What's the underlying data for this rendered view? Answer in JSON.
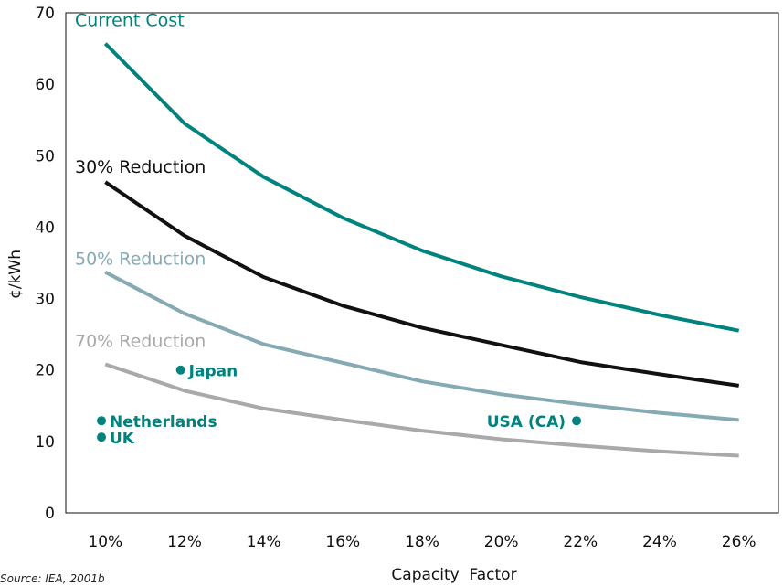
{
  "chart_data": {
    "type": "line",
    "xlabel": "Capacity  Factor",
    "ylabel": "¢/kWh",
    "x": [
      10,
      12,
      14,
      16,
      18,
      20,
      22,
      24,
      26
    ],
    "x_tick_labels": [
      "10%",
      "12%",
      "14%",
      "16%",
      "18%",
      "20%",
      "22%",
      "24%",
      "26%"
    ],
    "y_ticks": [
      0,
      10,
      20,
      30,
      40,
      50,
      60,
      70
    ],
    "xlim": [
      9,
      27
    ],
    "ylim": [
      0,
      70
    ],
    "series": [
      {
        "name": "Current Cost",
        "color": "#00837e",
        "values": [
          65.7,
          54.5,
          47.0,
          41.3,
          36.7,
          33.1,
          30.2,
          27.7,
          25.5
        ]
      },
      {
        "name": "30% Reduction",
        "color": "#111111",
        "values": [
          46.3,
          38.8,
          33.0,
          29.0,
          25.9,
          23.5,
          21.1,
          19.4,
          17.8
        ]
      },
      {
        "name": "50% Reduction",
        "color": "#86aab3",
        "values": [
          33.7,
          27.9,
          23.6,
          21.0,
          18.4,
          16.6,
          15.2,
          14.0,
          13.0
        ]
      },
      {
        "name": "70% Reduction",
        "color": "#a9a9ab",
        "values": [
          20.8,
          17.1,
          14.6,
          13.0,
          11.5,
          10.3,
          9.4,
          8.6,
          8.0
        ]
      }
    ],
    "points": [
      {
        "label": "Japan",
        "x": 11.9,
        "y": 20.0,
        "color": "#00837e"
      },
      {
        "label": "Netherlands",
        "x": 9.9,
        "y": 12.9,
        "color": "#00837e"
      },
      {
        "label": "UK",
        "x": 9.9,
        "y": 10.6,
        "color": "#00837e"
      },
      {
        "label": "USA (CA)",
        "x": 21.9,
        "y": 12.9,
        "color": "#00837e"
      }
    ],
    "grid": false,
    "source": "Source: IEA, 2001b"
  }
}
